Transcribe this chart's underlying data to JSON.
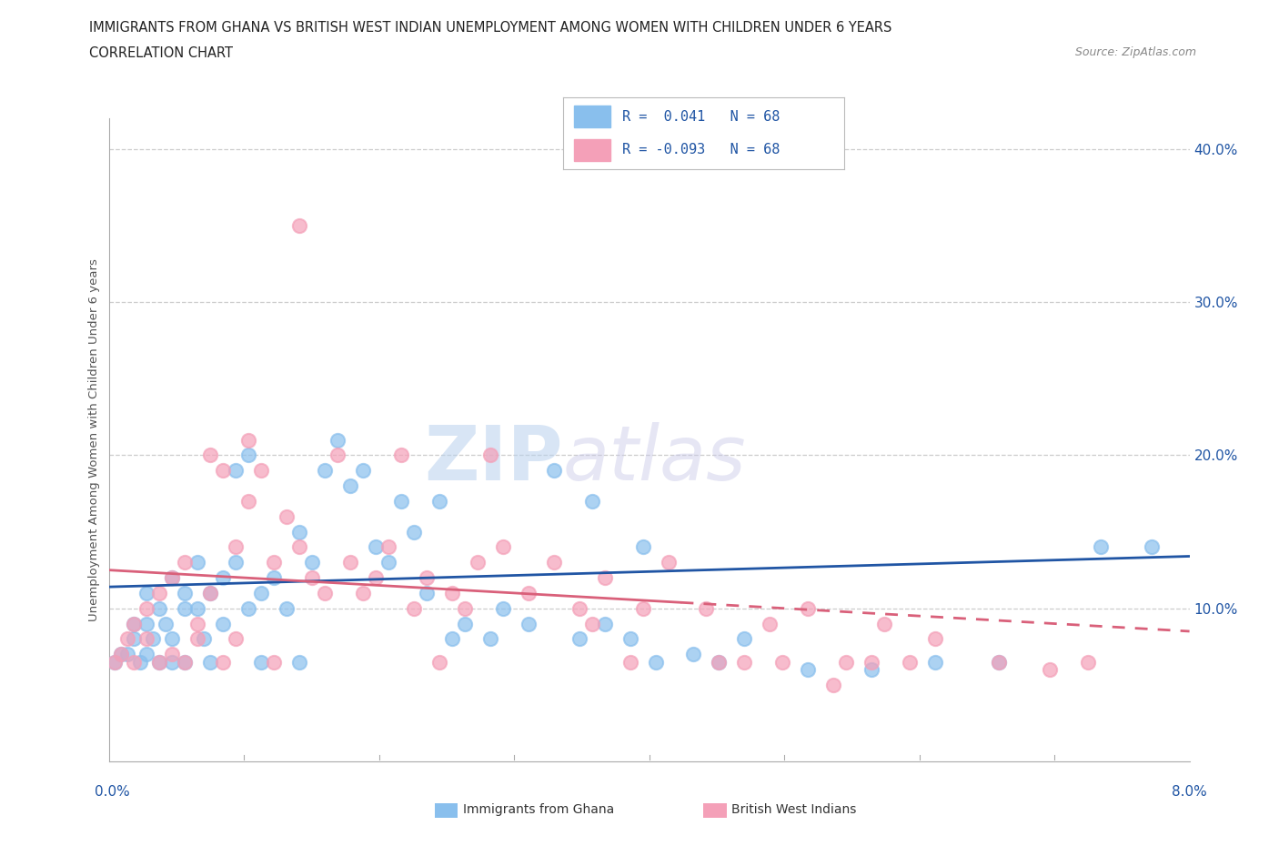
{
  "title_line1": "IMMIGRANTS FROM GHANA VS BRITISH WEST INDIAN UNEMPLOYMENT AMONG WOMEN WITH CHILDREN UNDER 6 YEARS",
  "title_line2": "CORRELATION CHART",
  "source_text": "Source: ZipAtlas.com",
  "ylabel": "Unemployment Among Women with Children Under 6 years",
  "ylim": [
    0,
    0.42
  ],
  "xlim": [
    0,
    0.085
  ],
  "ghana_color": "#89BFED",
  "bwi_color": "#F4A0B8",
  "ghana_line_color": "#2055A4",
  "bwi_line_color": "#D9607A",
  "R_ghana": 0.041,
  "R_bwi": -0.093,
  "N_ghana": 68,
  "N_bwi": 68,
  "watermark_zip": "ZIP",
  "watermark_atlas": "atlas",
  "y_tick_labels": [
    "10.0%",
    "20.0%",
    "30.0%",
    "40.0%"
  ],
  "y_ticks": [
    0.1,
    0.2,
    0.3,
    0.4
  ],
  "ghana_scatter_x": [
    0.0005,
    0.001,
    0.0015,
    0.002,
    0.002,
    0.0025,
    0.003,
    0.003,
    0.003,
    0.0035,
    0.004,
    0.004,
    0.0045,
    0.005,
    0.005,
    0.005,
    0.006,
    0.006,
    0.006,
    0.007,
    0.007,
    0.0075,
    0.008,
    0.008,
    0.009,
    0.009,
    0.01,
    0.01,
    0.011,
    0.011,
    0.012,
    0.012,
    0.013,
    0.014,
    0.015,
    0.015,
    0.016,
    0.017,
    0.018,
    0.019,
    0.02,
    0.021,
    0.022,
    0.023,
    0.024,
    0.025,
    0.026,
    0.027,
    0.028,
    0.03,
    0.031,
    0.033,
    0.035,
    0.037,
    0.039,
    0.041,
    0.043,
    0.046,
    0.048,
    0.038,
    0.042,
    0.05,
    0.055,
    0.06,
    0.065,
    0.07,
    0.078,
    0.082
  ],
  "ghana_scatter_y": [
    0.065,
    0.07,
    0.07,
    0.08,
    0.09,
    0.065,
    0.07,
    0.09,
    0.11,
    0.08,
    0.1,
    0.065,
    0.09,
    0.12,
    0.08,
    0.065,
    0.1,
    0.11,
    0.065,
    0.13,
    0.1,
    0.08,
    0.11,
    0.065,
    0.12,
    0.09,
    0.19,
    0.13,
    0.2,
    0.1,
    0.11,
    0.065,
    0.12,
    0.1,
    0.15,
    0.065,
    0.13,
    0.19,
    0.21,
    0.18,
    0.19,
    0.14,
    0.13,
    0.17,
    0.15,
    0.11,
    0.17,
    0.08,
    0.09,
    0.08,
    0.1,
    0.09,
    0.19,
    0.08,
    0.09,
    0.08,
    0.065,
    0.07,
    0.065,
    0.17,
    0.14,
    0.08,
    0.06,
    0.06,
    0.065,
    0.065,
    0.14,
    0.14
  ],
  "bwi_scatter_x": [
    0.0005,
    0.001,
    0.0015,
    0.002,
    0.002,
    0.003,
    0.003,
    0.004,
    0.004,
    0.005,
    0.005,
    0.006,
    0.006,
    0.007,
    0.007,
    0.008,
    0.008,
    0.009,
    0.009,
    0.01,
    0.01,
    0.011,
    0.011,
    0.012,
    0.013,
    0.013,
    0.014,
    0.015,
    0.016,
    0.017,
    0.018,
    0.019,
    0.02,
    0.021,
    0.022,
    0.023,
    0.024,
    0.025,
    0.026,
    0.027,
    0.028,
    0.029,
    0.031,
    0.033,
    0.035,
    0.037,
    0.039,
    0.041,
    0.044,
    0.047,
    0.05,
    0.052,
    0.055,
    0.058,
    0.061,
    0.063,
    0.038,
    0.042,
    0.048,
    0.053,
    0.057,
    0.06,
    0.065,
    0.07,
    0.074,
    0.077,
    0.03,
    0.015
  ],
  "bwi_scatter_y": [
    0.065,
    0.07,
    0.08,
    0.09,
    0.065,
    0.1,
    0.08,
    0.11,
    0.065,
    0.12,
    0.07,
    0.13,
    0.065,
    0.09,
    0.08,
    0.2,
    0.11,
    0.19,
    0.065,
    0.14,
    0.08,
    0.21,
    0.17,
    0.19,
    0.13,
    0.065,
    0.16,
    0.14,
    0.12,
    0.11,
    0.2,
    0.13,
    0.11,
    0.12,
    0.14,
    0.2,
    0.1,
    0.12,
    0.065,
    0.11,
    0.1,
    0.13,
    0.14,
    0.11,
    0.13,
    0.1,
    0.12,
    0.065,
    0.13,
    0.1,
    0.065,
    0.09,
    0.1,
    0.065,
    0.09,
    0.065,
    0.09,
    0.1,
    0.065,
    0.065,
    0.05,
    0.065,
    0.08,
    0.065,
    0.06,
    0.065,
    0.2,
    0.35
  ]
}
